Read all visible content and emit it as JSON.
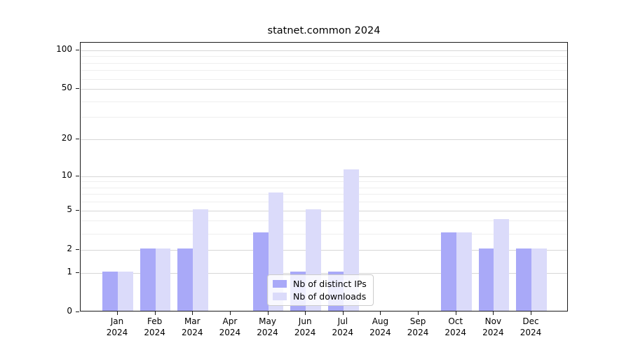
{
  "chart_data": {
    "type": "bar",
    "title": "statnet.common 2024",
    "categories": [
      "Jan",
      "Feb",
      "Mar",
      "Apr",
      "May",
      "Jun",
      "Jul",
      "Aug",
      "Sep",
      "Oct",
      "Nov",
      "Dec"
    ],
    "category_sublabel": "2024",
    "series": [
      {
        "name": "Nb of distinct IPs",
        "color": "#a9a9f8",
        "values": [
          1,
          2,
          2,
          0,
          3,
          1,
          1,
          0,
          0,
          3,
          2,
          2
        ]
      },
      {
        "name": "Nb of downloads",
        "color": "#dbdbfa",
        "values": [
          1,
          2,
          5,
          0,
          7,
          5,
          11,
          0,
          0,
          3,
          4,
          2
        ]
      }
    ],
    "xlabel": "",
    "ylabel": "",
    "y_scale": "log1p",
    "ylim": [
      0,
      115
    ],
    "y_tick_labels": [
      "0",
      "1",
      "2",
      "5",
      "10",
      "20",
      "50",
      "100"
    ],
    "y_major_ticks": [
      0,
      1,
      2,
      5,
      10,
      20,
      50,
      100
    ],
    "y_minor_gridlines": [
      3,
      4,
      6,
      7,
      8,
      9,
      30,
      40,
      60,
      70,
      80,
      90
    ],
    "grid": "on",
    "major_grid_color": "#d6d6d6",
    "minor_grid_color": "#efefef",
    "legend_position": "lower-center",
    "background_color": "#ffffff"
  }
}
